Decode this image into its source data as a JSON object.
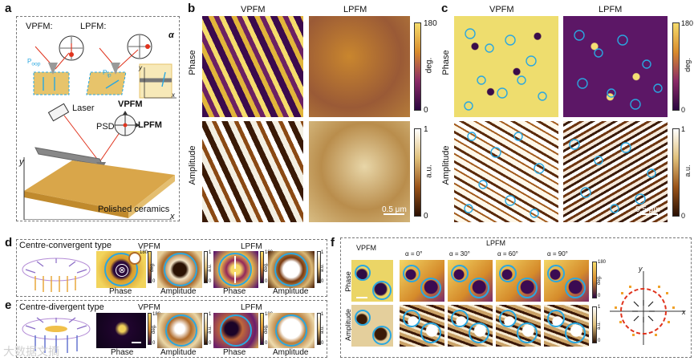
{
  "panel_a": {
    "label": "a",
    "vpfm_label": "VPFM:",
    "lpfm_label": "LPFM:",
    "p_oop": "P",
    "p_oop_sub": "oop",
    "p_ip": "P",
    "p_ip_sub": "ip",
    "alpha": "α",
    "axis_y": "y",
    "axis_x": "x",
    "laser": "Laser",
    "psd": "PSD",
    "vpfm": "VPFM",
    "lpfm": "LPFM",
    "sample": "Polished ceramics",
    "axis_y2": "y",
    "axis_x2": "x"
  },
  "panel_b": {
    "label": "b",
    "col1": "VPFM",
    "col2": "LPFM",
    "row1": "Phase",
    "row2": "Amplitude",
    "phase_max": "180",
    "phase_unit": "deg.",
    "phase_min": "0",
    "amp_max": "1",
    "amp_unit": "a.u.",
    "amp_min": "0",
    "scale": "0.5 μm"
  },
  "panel_c": {
    "label": "c",
    "col1": "VPFM",
    "col2": "LPFM",
    "row1": "Phase",
    "row2": "Amplitude",
    "phase_max": "180",
    "phase_unit": "deg.",
    "phase_min": "0",
    "amp_max": "1",
    "amp_unit": "a.u.",
    "amp_min": "0",
    "scale": "0.5 μm"
  },
  "panel_d": {
    "label": "d",
    "title": "Centre-convergent type",
    "vpfm": "VPFM",
    "lpfm": "LPFM",
    "phase": "Phase",
    "amplitude": "Amplitude",
    "phase2": "Phase",
    "amplitude2": "Amplitude",
    "cb_max": "180",
    "cb_unit": "deg.",
    "cb_min": "0",
    "cb2_max": "1",
    "cb2_unit": "a.u.",
    "cb2_min": "0",
    "cb3_max": "180",
    "cb3_unit": "deg.",
    "cb3_min": "0",
    "cb4_max": "1",
    "cb4_unit": "a.u.",
    "cb4_min": "0"
  },
  "panel_e": {
    "label": "e",
    "title": "Centre-divergent type",
    "vpfm": "VPFM",
    "lpfm": "LPFM",
    "phase": "Phase",
    "amplitude": "Amplitude",
    "phase2": "Phase",
    "amplitude2": "Amplitude",
    "cb_max": "180",
    "cb_unit": "deg.",
    "cb_min": "0",
    "cb2_max": "1",
    "cb2_unit": "a.u.",
    "cb2_min": "0",
    "cb3_max": "180",
    "cb3_unit": "deg.",
    "cb3_min": "0",
    "cb4_max": "1",
    "cb4_unit": "a.u.",
    "cb4_min": "0"
  },
  "panel_f": {
    "label": "f",
    "vpfm": "VPFM",
    "lpfm": "LPFM",
    "row1": "Phase",
    "row2": "Amplitude",
    "angles": [
      "α = 0°",
      "α = 30°",
      "α = 60°",
      "α = 90°"
    ],
    "cb_max": "180",
    "cb_unit": "deg.",
    "cb_min": "0",
    "cb2_max": "1",
    "cb2_unit": "a.u.",
    "cb2_min": "0",
    "axis_y": "y",
    "axis_x": "x"
  },
  "watermark": "大数据文摘",
  "colors": {
    "dashed_border": "#777777",
    "ring": "#2aa7e0",
    "phase_high": "#f6dc6b",
    "phase_low": "#3b0a4d",
    "amp_high": "#ffffff",
    "amp_low": "#3a1a06",
    "red_circle": "#e0331d"
  }
}
